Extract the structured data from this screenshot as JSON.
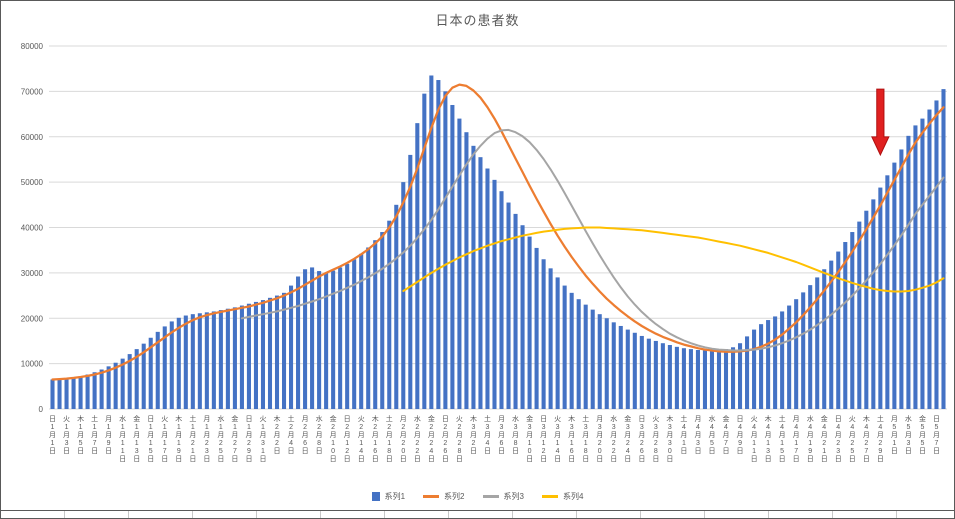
{
  "chart_data": {
    "type": "bar",
    "title": "日本の患者数",
    "xlabel": "",
    "ylabel": "",
    "ylim": [
      0,
      80000
    ],
    "y_ticks": [
      0,
      10000,
      20000,
      30000,
      40000,
      50000,
      60000,
      70000,
      80000
    ],
    "y_tick_labels": [
      "0",
      "10000",
      "20000",
      "30000",
      "40000",
      "50000",
      "60000",
      "70000",
      "80000"
    ],
    "grid": true,
    "legend_position": "bottom",
    "colors": {
      "grid": "#D9D9D9",
      "axis_text": "#595959",
      "title": "#595959"
    },
    "categories": [
      "1/1",
      "1/2",
      "1/3",
      "1/4",
      "1/5",
      "1/6",
      "1/7",
      "1/8",
      "1/9",
      "1/10",
      "1/11",
      "1/12",
      "1/13",
      "1/14",
      "1/15",
      "1/16",
      "1/17",
      "1/18",
      "1/19",
      "1/20",
      "1/21",
      "1/22",
      "1/23",
      "1/24",
      "1/25",
      "1/26",
      "1/27",
      "1/28",
      "1/29",
      "1/30",
      "1/31",
      "2/1",
      "2/2",
      "2/3",
      "2/4",
      "2/5",
      "2/6",
      "2/7",
      "2/8",
      "2/9",
      "2/10",
      "2/11",
      "2/12",
      "2/13",
      "2/14",
      "2/15",
      "2/16",
      "2/17",
      "2/18",
      "2/19",
      "2/20",
      "2/21",
      "2/22",
      "2/23",
      "2/24",
      "2/25",
      "2/26",
      "2/27",
      "2/28",
      "3/1",
      "3/2",
      "3/3",
      "3/4",
      "3/5",
      "3/6",
      "3/7",
      "3/8",
      "3/9",
      "3/10",
      "3/11",
      "3/12",
      "3/13",
      "3/14",
      "3/15",
      "3/16",
      "3/17",
      "3/18",
      "3/19",
      "3/20",
      "3/21",
      "3/22",
      "3/23",
      "3/24",
      "3/25",
      "3/26",
      "3/27",
      "3/28",
      "3/29",
      "3/30",
      "3/31",
      "4/1",
      "4/2",
      "4/3",
      "4/4",
      "4/5",
      "4/6",
      "4/7",
      "4/8",
      "4/9",
      "4/10",
      "4/11",
      "4/12",
      "4/13",
      "4/14",
      "4/15",
      "4/16",
      "4/17",
      "4/18",
      "4/19",
      "4/20",
      "4/21",
      "4/22",
      "4/23",
      "4/24",
      "4/25",
      "4/26",
      "4/27",
      "4/28",
      "4/29",
      "4/30",
      "5/1",
      "5/2",
      "5/3",
      "5/4",
      "5/5",
      "5/6",
      "5/7",
      "5/8"
    ],
    "x_tick_labels": [
      "日1月1日",
      "火1月3日",
      "木1月5日",
      "土1月7日",
      "月1月9日",
      "水1月11日",
      "金1月13日",
      "日1月15日",
      "火1月17日",
      "木1月19日",
      "土1月21日",
      "月1月23日",
      "水1月25日",
      "金1月27日",
      "日1月29日",
      "火1月31日",
      "木2月2日",
      "土2月4日",
      "月2月6日",
      "水2月8日",
      "金2月10日",
      "日2月12日",
      "火2月14日",
      "木2月16日",
      "土2月18日",
      "月2月20日",
      "水2月22日",
      "金2月24日",
      "日2月26日",
      "火2月28日",
      "木3月2日",
      "土3月4日",
      "月3月6日",
      "水3月8日",
      "金3月10日",
      "日3月12日",
      "火3月14日",
      "木3月16日",
      "土3月18日",
      "月3月20日",
      "水3月22日",
      "金3月24日",
      "日3月26日",
      "火3月28日",
      "木3月30日",
      "土4月1日",
      "月4月3日",
      "水4月5日",
      "金4月7日",
      "日4月9日",
      "火4月11日",
      "木4月13日",
      "土4月15日",
      "月4月17日",
      "水4月19日",
      "金4月21日",
      "日4月23日",
      "火4月25日",
      "木4月27日",
      "土4月29日",
      "月5月1日",
      "水5月3日",
      "金5月5日",
      "日5月7日"
    ],
    "series": [
      {
        "name": "系列1",
        "type": "bar",
        "color": "#4472C4",
        "start_index": 0,
        "values": [
          6500,
          6700,
          6600,
          6900,
          7200,
          7600,
          8100,
          8700,
          9400,
          10200,
          11100,
          12100,
          13200,
          14400,
          15700,
          17000,
          18200,
          19300,
          20100,
          20600,
          20900,
          21100,
          21300,
          21500,
          21800,
          22100,
          22400,
          22800,
          23200,
          23600,
          24000,
          24500,
          25000,
          25600,
          27200,
          29200,
          30800,
          31200,
          30400,
          30000,
          30500,
          31200,
          32000,
          33000,
          34200,
          35600,
          37200,
          39000,
          41500,
          45000,
          50000,
          56000,
          63000,
          69500,
          73500,
          72500,
          70000,
          67000,
          64000,
          61000,
          58000,
          55500,
          53000,
          50500,
          48000,
          45500,
          43000,
          40500,
          38000,
          35500,
          33000,
          31000,
          29000,
          27200,
          25600,
          24200,
          23000,
          21900,
          20900,
          20000,
          19100,
          18300,
          17500,
          16800,
          16100,
          15500,
          15000,
          14500,
          14100,
          13700,
          13400,
          13200,
          13000,
          12900,
          12900,
          13000,
          13200,
          13600,
          14500,
          16000,
          17500,
          18700,
          19600,
          20400,
          21500,
          22800,
          24200,
          25700,
          27300,
          29000,
          30800,
          32700,
          34700,
          36800,
          39000,
          41300,
          43700,
          46200,
          48800,
          51500,
          54300,
          57200,
          60200,
          62500,
          64000,
          66000,
          68000,
          70500
        ]
      },
      {
        "name": "系列2",
        "type": "line",
        "color": "#ED7D31",
        "start_index": 0,
        "values": [
          6500,
          6600,
          6700,
          6850,
          7050,
          7300,
          7600,
          8000,
          8500,
          9100,
          9800,
          10600,
          11500,
          12500,
          13600,
          14700,
          15800,
          16900,
          17900,
          18800,
          19600,
          20200,
          20700,
          21100,
          21400,
          21700,
          22000,
          22300,
          22600,
          23000,
          23400,
          23900,
          24400,
          25000,
          25700,
          26500,
          27400,
          28300,
          29200,
          30000,
          30700,
          31400,
          32200,
          33100,
          34100,
          35200,
          36500,
          38000,
          40000,
          42500,
          45500,
          49000,
          53000,
          57500,
          62000,
          66000,
          69000,
          70800,
          71500,
          71200,
          70200,
          68600,
          66500,
          64000,
          61200,
          58200,
          55200,
          52200,
          49200,
          46300,
          43500,
          40800,
          38200,
          35800,
          33500,
          31400,
          29400,
          27600,
          25900,
          24300,
          22900,
          21600,
          20400,
          19300,
          18300,
          17400,
          16600,
          15900,
          15300,
          14700,
          14200,
          13800,
          13400,
          13100,
          12900,
          12700,
          12600,
          12600,
          12700,
          12900,
          13200,
          13700,
          14400,
          15300,
          16400,
          17700,
          19100,
          20700,
          22400,
          24200,
          26100,
          28100,
          30200,
          32400,
          34700,
          37100,
          39600,
          42200,
          44900,
          47700,
          50500,
          53300,
          56100,
          58700,
          60900,
          62900,
          64800,
          66500
        ]
      },
      {
        "name": "系列3",
        "type": "line",
        "color": "#A5A5A5",
        "start_index": 27,
        "values": [
          20000,
          20300,
          20600,
          20900,
          21200,
          21500,
          21900,
          22300,
          22700,
          23200,
          23700,
          24200,
          24800,
          25400,
          26000,
          26700,
          27400,
          28200,
          29000,
          29900,
          30900,
          32000,
          33200,
          34500,
          36000,
          37700,
          39600,
          41700,
          44000,
          46500,
          49000,
          51500,
          53900,
          56100,
          58000,
          59600,
          60800,
          61400,
          61500,
          61000,
          60100,
          58800,
          57100,
          55100,
          52800,
          50300,
          47600,
          44800,
          42000,
          39200,
          36500,
          33900,
          31400,
          29000,
          26800,
          24800,
          23000,
          21400,
          20000,
          18700,
          17600,
          16600,
          15800,
          15100,
          14500,
          14000,
          13600,
          13300,
          13100,
          13000,
          12900,
          12900,
          13000,
          13100,
          13300,
          13600,
          14000,
          14500,
          15100,
          15800,
          16600,
          17500,
          18500,
          19600,
          20800,
          22100,
          23500,
          25000,
          26600,
          28300,
          30100,
          32000,
          34000,
          36100,
          38300,
          40600,
          43000,
          45000,
          47000,
          49000,
          51000
        ]
      },
      {
        "name": "系列4",
        "type": "line",
        "color": "#FFC000",
        "start_index": 50,
        "values": [
          26000,
          27000,
          28000,
          29000,
          30000,
          30900,
          31800,
          32600,
          33400,
          34100,
          34800,
          35400,
          36000,
          36500,
          37000,
          37400,
          37800,
          38200,
          38500,
          38800,
          39100,
          39300,
          39500,
          39700,
          39800,
          39900,
          40000,
          40000,
          40000,
          39900,
          39800,
          39700,
          39600,
          39500,
          39400,
          39200,
          39000,
          38800,
          38600,
          38400,
          38200,
          38000,
          37800,
          37500,
          37200,
          36900,
          36600,
          36300,
          36000,
          35600,
          35200,
          34800,
          34400,
          33900,
          33400,
          32900,
          32400,
          31800,
          31200,
          30600,
          30000,
          29400,
          28800,
          28300,
          27800,
          27300,
          26900,
          26500,
          26200,
          26000,
          25900,
          25900,
          26000,
          26300,
          26700,
          27200,
          27900,
          28800
        ]
      }
    ],
    "annotation": {
      "shape": "down-arrow",
      "x_index": 118,
      "tail_value": 70500,
      "tip_value": 56000,
      "color": "#E02020",
      "stroke": "#B01010"
    }
  }
}
